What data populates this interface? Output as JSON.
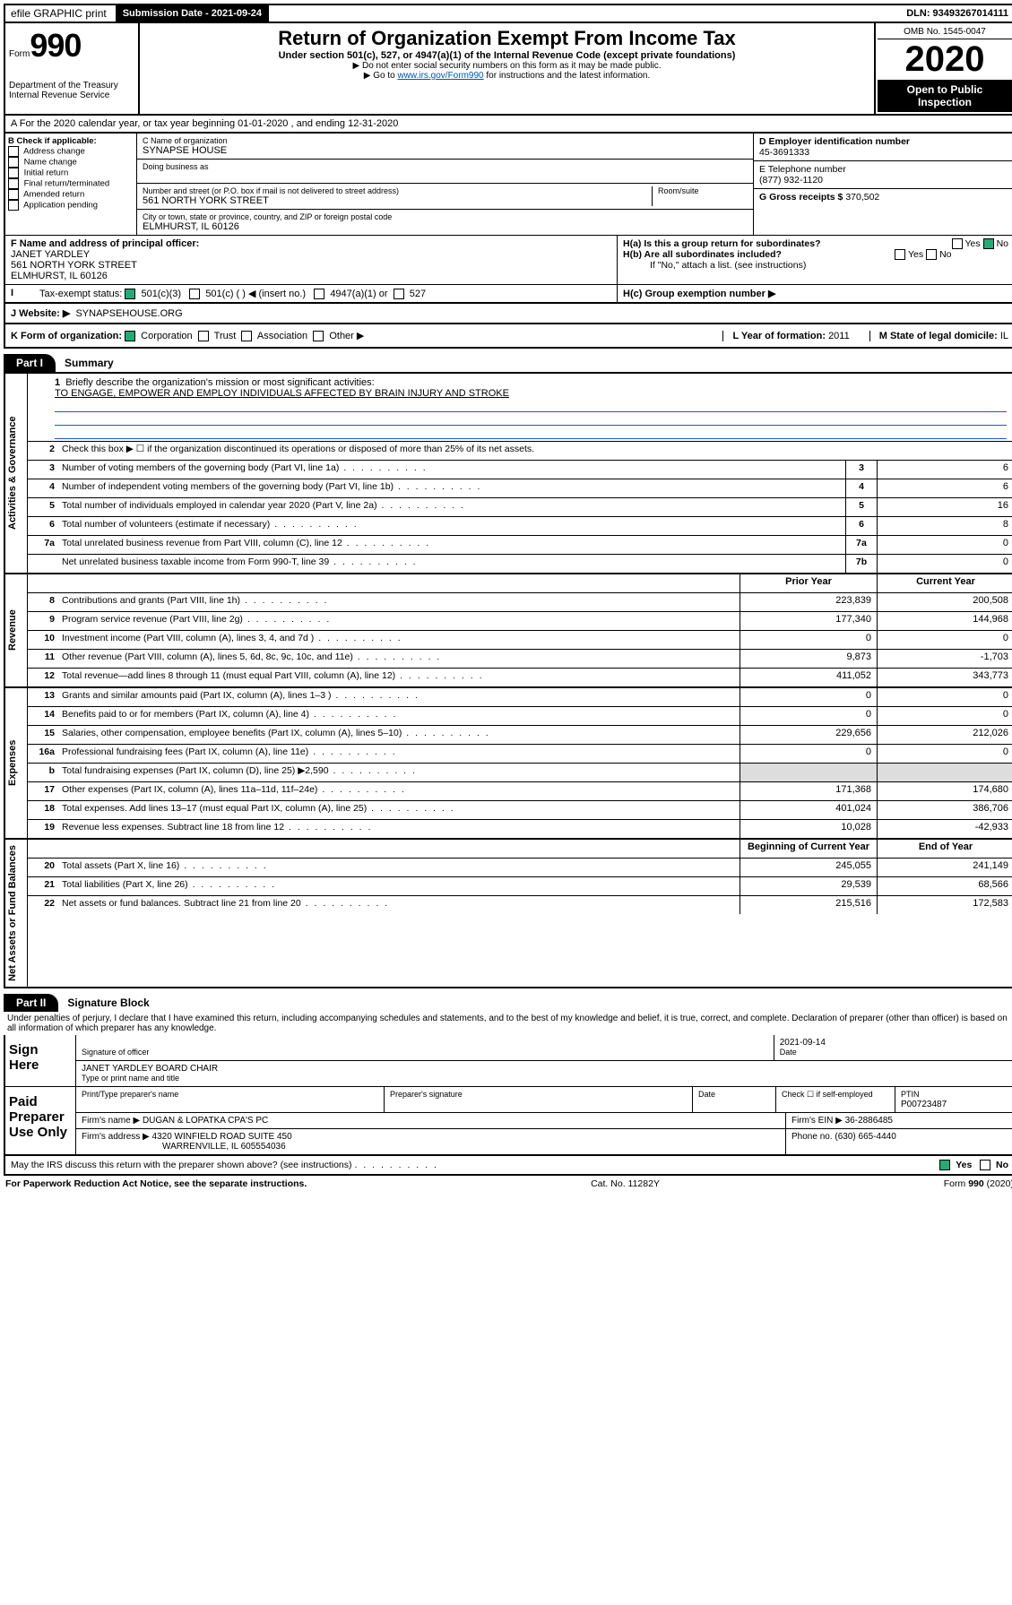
{
  "topbar": {
    "efile": "efile GRAPHIC print",
    "submission_label": "Submission Date - 2021-09-24",
    "dln": "DLN: 93493267014111"
  },
  "header": {
    "form_prefix": "Form",
    "form_number": "990",
    "title": "Return of Organization Exempt From Income Tax",
    "subtitle": "Under section 501(c), 527, or 4947(a)(1) of the Internal Revenue Code (except private foundations)",
    "note1": "▶ Do not enter social security numbers on this form as it may be made public.",
    "note2_pre": "▶ Go to ",
    "note2_link": "www.irs.gov/Form990",
    "note2_post": " for instructions and the latest information.",
    "omb": "OMB No. 1545-0047",
    "tax_year": "2020",
    "open_public": "Open to Public Inspection",
    "dept": "Department of the Treasury\nInternal Revenue Service"
  },
  "section_a": "A For the 2020 calendar year, or tax year beginning 01-01-2020    , and ending 12-31-2020",
  "box_b": {
    "label": "B Check if applicable:",
    "items": [
      "Address change",
      "Name change",
      "Initial return",
      "Final return/terminated",
      "Amended return",
      "Application pending"
    ]
  },
  "box_c": {
    "label": "C Name of organization",
    "value": "SYNAPSE HOUSE",
    "dba_label": "Doing business as",
    "addr_label": "Number and street (or P.O. box if mail is not delivered to street address)",
    "room_label": "Room/suite",
    "addr": "561 NORTH YORK STREET",
    "city_label": "City or town, state or province, country, and ZIP or foreign postal code",
    "city": "ELMHURST, IL  60126"
  },
  "box_d": {
    "label": "D Employer identification number",
    "value": "45-3691333"
  },
  "box_e": {
    "label": "E Telephone number",
    "value": "(877) 932-1120"
  },
  "box_g": {
    "label": "G Gross receipts $",
    "value": "370,502"
  },
  "box_f": {
    "label": "F Name and address of principal officer:",
    "name": "JANET YARDLEY",
    "addr1": "561 NORTH YORK STREET",
    "addr2": "ELMHURST, IL  60126"
  },
  "box_h": {
    "a": "H(a)  Is this a group return for subordinates?",
    "b": "H(b)  Are all subordinates included?",
    "b_note": "If \"No,\" attach a list. (see instructions)",
    "c": "H(c)  Group exemption number ▶",
    "yes": "Yes",
    "no": "No"
  },
  "box_i": {
    "label": "Tax-exempt status:",
    "o1": "501(c)(3)",
    "o2": "501(c) (  ) ◀ (insert no.)",
    "o3": "4947(a)(1) or",
    "o4": "527"
  },
  "box_j": {
    "label": "J   Website: ▶",
    "value": "SYNAPSEHOUSE.ORG"
  },
  "box_k": {
    "label": "K Form of organization:",
    "o1": "Corporation",
    "o2": "Trust",
    "o3": "Association",
    "o4": "Other ▶"
  },
  "box_l": {
    "label": "L Year of formation:",
    "value": "2011"
  },
  "box_m": {
    "label": "M State of legal domicile:",
    "value": "IL"
  },
  "part1": {
    "tab": "Part I",
    "title": "Summary",
    "line1_label": "Briefly describe the organization's mission or most significant activities:",
    "line1_value": "TO ENGAGE, EMPOWER AND EMPLOY INDIVIDUALS AFFECTED BY BRAIN INJURY AND STROKE",
    "line2": "Check this box ▶ ☐  if the organization discontinued its operations or disposed of more than 25% of its net assets.",
    "vert": {
      "gov": "Activities & Governance",
      "rev": "Revenue",
      "exp": "Expenses",
      "net": "Net Assets or Fund Balances"
    },
    "col_prior": "Prior Year",
    "col_current": "Current Year",
    "col_begin": "Beginning of Current Year",
    "col_end": "End of Year",
    "rows_gov": [
      {
        "n": "3",
        "t": "Number of voting members of the governing body (Part VI, line 1a)",
        "m": "3",
        "v": "6"
      },
      {
        "n": "4",
        "t": "Number of independent voting members of the governing body (Part VI, line 1b)",
        "m": "4",
        "v": "6"
      },
      {
        "n": "5",
        "t": "Total number of individuals employed in calendar year 2020 (Part V, line 2a)",
        "m": "5",
        "v": "16"
      },
      {
        "n": "6",
        "t": "Total number of volunteers (estimate if necessary)",
        "m": "6",
        "v": "8"
      },
      {
        "n": "7a",
        "t": "Total unrelated business revenue from Part VIII, column (C), line 12",
        "m": "7a",
        "v": "0"
      },
      {
        "n": "",
        "t": "Net unrelated business taxable income from Form 990-T, line 39",
        "m": "7b",
        "v": "0"
      }
    ],
    "rows_rev": [
      {
        "n": "8",
        "t": "Contributions and grants (Part VIII, line 1h)",
        "p": "223,839",
        "c": "200,508"
      },
      {
        "n": "9",
        "t": "Program service revenue (Part VIII, line 2g)",
        "p": "177,340",
        "c": "144,968"
      },
      {
        "n": "10",
        "t": "Investment income (Part VIII, column (A), lines 3, 4, and 7d )",
        "p": "0",
        "c": "0"
      },
      {
        "n": "11",
        "t": "Other revenue (Part VIII, column (A), lines 5, 6d, 8c, 9c, 10c, and 11e)",
        "p": "9,873",
        "c": "-1,703"
      },
      {
        "n": "12",
        "t": "Total revenue—add lines 8 through 11 (must equal Part VIII, column (A), line 12)",
        "p": "411,052",
        "c": "343,773"
      }
    ],
    "rows_exp": [
      {
        "n": "13",
        "t": "Grants and similar amounts paid (Part IX, column (A), lines 1–3 )",
        "p": "0",
        "c": "0"
      },
      {
        "n": "14",
        "t": "Benefits paid to or for members (Part IX, column (A), line 4)",
        "p": "0",
        "c": "0"
      },
      {
        "n": "15",
        "t": "Salaries, other compensation, employee benefits (Part IX, column (A), lines 5–10)",
        "p": "229,656",
        "c": "212,026"
      },
      {
        "n": "16a",
        "t": "Professional fundraising fees (Part IX, column (A), line 11e)",
        "p": "0",
        "c": "0"
      },
      {
        "n": "b",
        "t": "Total fundraising expenses (Part IX, column (D), line 25) ▶2,590",
        "p": "",
        "c": "",
        "shaded": true
      },
      {
        "n": "17",
        "t": "Other expenses (Part IX, column (A), lines 11a–11d, 11f–24e)",
        "p": "171,368",
        "c": "174,680"
      },
      {
        "n": "18",
        "t": "Total expenses. Add lines 13–17 (must equal Part IX, column (A), line 25)",
        "p": "401,024",
        "c": "386,706"
      },
      {
        "n": "19",
        "t": "Revenue less expenses. Subtract line 18 from line 12",
        "p": "10,028",
        "c": "-42,933"
      }
    ],
    "rows_net": [
      {
        "n": "20",
        "t": "Total assets (Part X, line 16)",
        "p": "245,055",
        "c": "241,149"
      },
      {
        "n": "21",
        "t": "Total liabilities (Part X, line 26)",
        "p": "29,539",
        "c": "68,566"
      },
      {
        "n": "22",
        "t": "Net assets or fund balances. Subtract line 21 from line 20",
        "p": "215,516",
        "c": "172,583"
      }
    ]
  },
  "part2": {
    "tab": "Part II",
    "title": "Signature Block",
    "perjury": "Under penalties of perjury, I declare that I have examined this return, including accompanying schedules and statements, and to the best of my knowledge and belief, it is true, correct, and complete. Declaration of preparer (other than officer) is based on all information of which preparer has any knowledge.",
    "sign_here": "Sign Here",
    "sig_officer": "Signature of officer",
    "sig_date": "2021-09-14",
    "date_label": "Date",
    "officer_name": "JANET YARDLEY BOARD CHAIR",
    "type_name": "Type or print name and title",
    "paid": "Paid Preparer Use Only",
    "prep_name_label": "Print/Type preparer's name",
    "prep_sig_label": "Preparer's signature",
    "check_self": "Check ☐ if self-employed",
    "ptin_label": "PTIN",
    "ptin": "P00723487",
    "firm_name_label": "Firm's name    ▶",
    "firm_name": "DUGAN & LOPATKA CPA'S PC",
    "firm_ein_label": "Firm's EIN ▶",
    "firm_ein": "36-2886485",
    "firm_addr_label": "Firm's address ▶",
    "firm_addr1": "4320 WINFIELD ROAD SUITE 450",
    "firm_addr2": "WARRENVILLE, IL  605554036",
    "phone_label": "Phone no.",
    "phone": "(630) 665-4440",
    "discuss": "May the IRS discuss this return with the preparer shown above? (see instructions)",
    "yes": "Yes",
    "no": "No"
  },
  "footer": {
    "left": "For Paperwork Reduction Act Notice, see the separate instructions.",
    "center": "Cat. No. 11282Y",
    "right": "Form 990 (2020)"
  }
}
